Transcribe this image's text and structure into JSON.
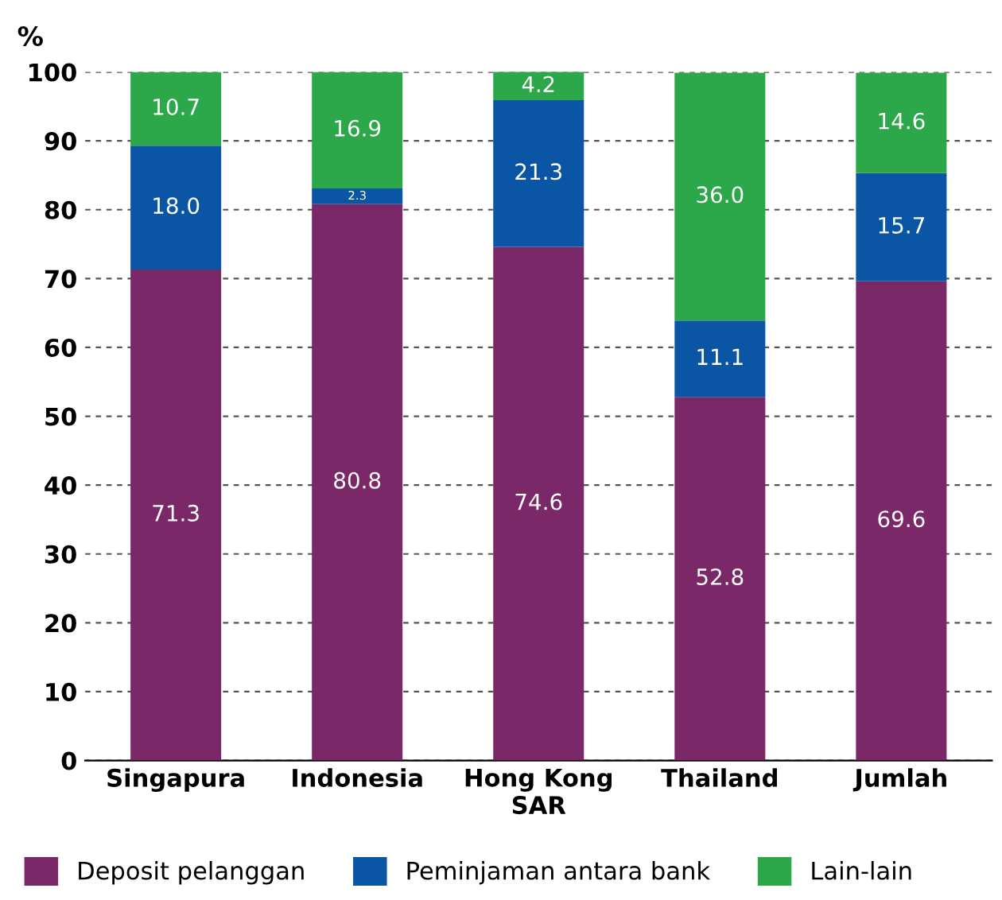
{
  "chart_data": {
    "type": "bar",
    "stacked": true,
    "ylabel": "%",
    "categories": [
      "Singapura",
      "Indonesia",
      "Hong Kong\nSAR",
      "Thailand",
      "Jumlah"
    ],
    "series": [
      {
        "name": "Deposit pelanggan",
        "color": "#7b2869",
        "values": [
          71.3,
          80.8,
          74.6,
          52.8,
          69.6
        ],
        "value_labels": [
          "71.3",
          "80.8",
          "74.6",
          "52.8",
          "69.6"
        ]
      },
      {
        "name": "Peminjaman antara bank",
        "color": "#0b56a4",
        "values": [
          18.0,
          2.3,
          21.3,
          11.1,
          15.7
        ],
        "value_labels": [
          "18.0",
          "2.3",
          "21.3",
          "11.1",
          "15.7"
        ]
      },
      {
        "name": "Lain-lain",
        "color": "#2ca84a",
        "values": [
          10.7,
          16.9,
          4.2,
          36.0,
          14.6
        ],
        "value_labels": [
          "10.7",
          "16.9",
          "4.2",
          "36.0",
          "14.6"
        ]
      }
    ],
    "ylim": [
      0,
      100
    ],
    "yticks": [
      0,
      10,
      20,
      30,
      40,
      50,
      60,
      70,
      80,
      90,
      100
    ],
    "grid": "y",
    "legend": "bottom"
  }
}
